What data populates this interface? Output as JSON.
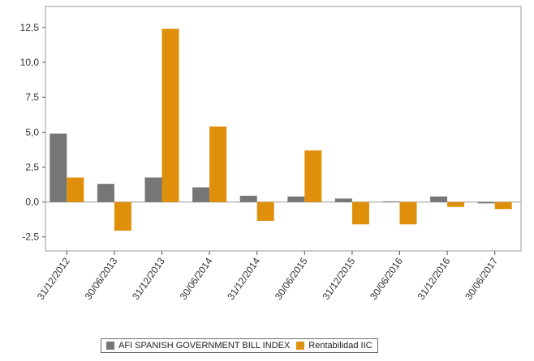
{
  "chart_data": {
    "type": "bar",
    "title": "",
    "xlabel": "",
    "ylabel": "",
    "categories": [
      "31/12/2012",
      "30/06/2013",
      "31/12/2013",
      "30/06/2014",
      "31/12/2014",
      "30/06/2015",
      "31/12/2015",
      "30/06/2016",
      "31/12/2016",
      "30/06/2017"
    ],
    "series": [
      {
        "name": "AFI SPANISH GOVERNMENT BILL INDEX",
        "color": "#767676",
        "values": [
          4.9,
          1.3,
          1.75,
          1.05,
          0.45,
          0.4,
          0.25,
          0.05,
          0.4,
          -0.1
        ]
      },
      {
        "name": "Rentabilidad IIC",
        "color": "#e08f0a",
        "values": [
          1.75,
          -2.05,
          12.4,
          5.4,
          -1.35,
          3.7,
          -1.6,
          -1.6,
          -0.35,
          -0.5
        ]
      }
    ],
    "ylim": [
      -3.5,
      14
    ],
    "yticks": [
      "12,5",
      "10,0",
      "7,5",
      "5,0",
      "2,5",
      "0,0",
      "-2,5"
    ],
    "ytick_values": [
      12.5,
      10,
      7.5,
      5,
      2.5,
      0,
      -2.5
    ],
    "grid": false,
    "legend_position": "bottom"
  }
}
